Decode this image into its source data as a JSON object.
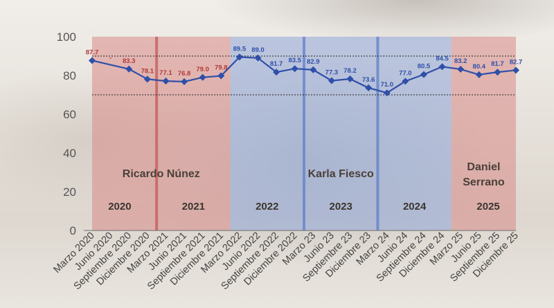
{
  "chart_data": {
    "type": "line",
    "categories": [
      "Marzo 2020",
      "Junio 2020",
      "Septiembre 2020",
      "Diciembre 2020",
      "Marzo 2021",
      "Junio 2021",
      "Septiembre 2021",
      "Diciembre 2021",
      "Marzo 2022",
      "Junio 2022",
      "Septiembre 2022",
      "Diciembre 2022",
      "Marzo 23",
      "Junio 23",
      "Septiembre 23",
      "Diciembre 23",
      "Marzo 24",
      "Junio 24",
      "Septiembre 24",
      "Diciembre 24",
      "Marzo 25",
      "Junio 25",
      "Septiembre 25",
      "Diciembre 25"
    ],
    "values": [
      87.7,
      null,
      83.3,
      78.1,
      77.1,
      76.8,
      79.0,
      79.8,
      89.5,
      89.0,
      81.7,
      83.5,
      82.9,
      77.3,
      78.2,
      73.6,
      71.0,
      77.0,
      80.5,
      84.5,
      83.2,
      80.4,
      81.7,
      82.7
    ],
    "value_labels": [
      "87.7",
      "-",
      "83.3",
      "78.1",
      "77.1",
      "76.8",
      "79.0",
      "79.8",
      "89.5",
      "89.0",
      "81.7",
      "83.5",
      "82.9",
      "77.3",
      "78.2",
      "73.6",
      "71.0",
      "77.0",
      "80.5",
      "84.5",
      "83.2",
      "80.4",
      "81.7",
      "82.7"
    ],
    "ylim": [
      0,
      100
    ],
    "yticks": [
      "0",
      "20",
      "40",
      "60",
      "80",
      "100"
    ],
    "reference_lines": [
      90,
      70
    ],
    "line_color": "#2f4fa8",
    "periods": [
      {
        "name": "Ricardo Núnez",
        "start": 0,
        "end": 7,
        "color": "#d98a88"
      },
      {
        "name": "Karla Fiesco",
        "start": 8,
        "end": 19,
        "color": "#8fa6d8"
      },
      {
        "name": "Daniel Serrano",
        "start": 20,
        "end": 23,
        "color": "#d98a88"
      }
    ],
    "label_colors": {
      "Ricardo Núnez": "#b03a36",
      "Karla Fiesco": "#2f4fa8",
      "Daniel Serrano": "#2f4fa8"
    },
    "year_dividers": [
      3.5,
      11.5,
      15.5
    ],
    "years": [
      {
        "label": "2020",
        "center": 1.5
      },
      {
        "label": "2021",
        "center": 5.5
      },
      {
        "label": "2022",
        "center": 9.5
      },
      {
        "label": "2023",
        "center": 13.5
      },
      {
        "label": "2024",
        "center": 17.5
      },
      {
        "label": "2025",
        "center": 21.5
      }
    ],
    "grid": false,
    "title": "",
    "xlabel": "",
    "ylabel": ""
  }
}
